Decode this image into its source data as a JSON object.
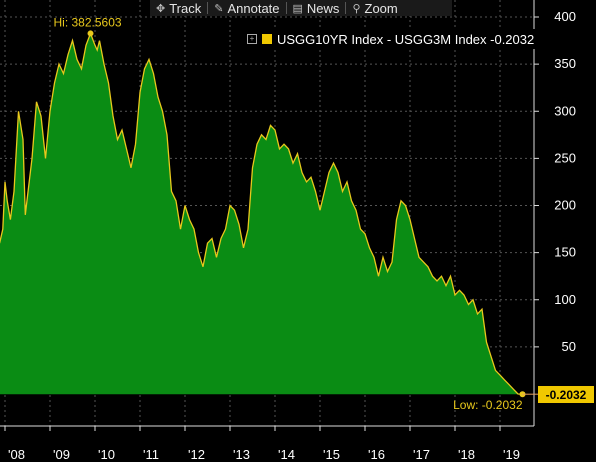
{
  "toolbar": {
    "track": {
      "label": "Track",
      "icon": "crosshair-icon"
    },
    "annotate": {
      "label": "Annotate",
      "icon": "pencil-icon"
    },
    "news": {
      "label": "News",
      "icon": "news-icon"
    },
    "zoom": {
      "label": "Zoom",
      "icon": "magnifier-icon"
    }
  },
  "legend": {
    "expand_icon": "plus-box-icon",
    "label": "USGG10YR Index - USGG3M Index -0.2032"
  },
  "colors": {
    "background": "#000000",
    "fill": "#0a8c14",
    "line": "#e8c81c",
    "grid": "#555555",
    "axis_text": "#ffffff",
    "annotation": "#e8c81c",
    "last_tag_bg": "#f0c800"
  },
  "annotations": {
    "high": "Hi: 382.5603",
    "low": "Low: -0.2032"
  },
  "last_value_tag": "-0.2032",
  "chart_data": {
    "type": "area",
    "x_ticks": [
      "'08",
      "'09",
      "'10",
      "'11",
      "'12",
      "'13",
      "'14",
      "'15",
      "'16",
      "'17",
      "'18",
      "'19"
    ],
    "y_ticks": [
      400,
      350,
      300,
      250,
      200,
      150,
      100,
      50
    ],
    "ylim": [
      -0.2032,
      410
    ],
    "xlim": [
      2007.88,
      2019.95
    ],
    "grid": true,
    "y_axis_side": "right",
    "legend_position": "top-right",
    "series": [
      {
        "name": "USGG10YR Index - USGG3M Index",
        "x": [
          2007.88,
          2007.95,
          2008.0,
          2008.05,
          2008.12,
          2008.2,
          2008.3,
          2008.4,
          2008.45,
          2008.5,
          2008.6,
          2008.7,
          2008.8,
          2008.9,
          2009.0,
          2009.1,
          2009.2,
          2009.3,
          2009.4,
          2009.5,
          2009.6,
          2009.7,
          2009.8,
          2009.9,
          2010.0,
          2010.05,
          2010.1,
          2010.2,
          2010.3,
          2010.4,
          2010.5,
          2010.6,
          2010.7,
          2010.8,
          2010.9,
          2011.0,
          2011.1,
          2011.2,
          2011.3,
          2011.4,
          2011.5,
          2011.6,
          2011.7,
          2011.8,
          2011.9,
          2012.0,
          2012.1,
          2012.2,
          2012.3,
          2012.4,
          2012.5,
          2012.6,
          2012.7,
          2012.8,
          2012.9,
          2013.0,
          2013.1,
          2013.2,
          2013.3,
          2013.4,
          2013.5,
          2013.6,
          2013.7,
          2013.8,
          2013.9,
          2014.0,
          2014.1,
          2014.2,
          2014.3,
          2014.4,
          2014.5,
          2014.6,
          2014.7,
          2014.8,
          2014.9,
          2015.0,
          2015.1,
          2015.2,
          2015.3,
          2015.4,
          2015.5,
          2015.6,
          2015.7,
          2015.8,
          2015.9,
          2016.0,
          2016.1,
          2016.2,
          2016.3,
          2016.4,
          2016.5,
          2016.6,
          2016.7,
          2016.8,
          2016.9,
          2017.0,
          2017.1,
          2017.2,
          2017.3,
          2017.4,
          2017.5,
          2017.6,
          2017.7,
          2017.8,
          2017.9,
          2018.0,
          2018.1,
          2018.2,
          2018.3,
          2018.4,
          2018.5,
          2018.6,
          2018.7,
          2018.8,
          2018.9,
          2019.0,
          2019.1,
          2019.2,
          2019.3,
          2019.4,
          2019.5
        ],
        "y": [
          160,
          175,
          225,
          205,
          185,
          215,
          300,
          270,
          190,
          210,
          250,
          310,
          295,
          250,
          300,
          330,
          350,
          340,
          360,
          375,
          355,
          345,
          370,
          382.5603,
          370,
          365,
          375,
          350,
          330,
          295,
          270,
          280,
          260,
          240,
          265,
          320,
          345,
          355,
          340,
          315,
          300,
          275,
          215,
          205,
          175,
          200,
          185,
          175,
          150,
          135,
          160,
          165,
          145,
          165,
          175,
          200,
          195,
          180,
          155,
          175,
          240,
          265,
          275,
          270,
          285,
          280,
          260,
          265,
          260,
          245,
          255,
          235,
          225,
          230,
          215,
          195,
          215,
          235,
          245,
          235,
          215,
          225,
          205,
          195,
          175,
          170,
          155,
          145,
          125,
          145,
          130,
          140,
          185,
          205,
          200,
          185,
          165,
          145,
          140,
          135,
          125,
          120,
          125,
          115,
          125,
          105,
          110,
          105,
          95,
          100,
          85,
          90,
          55,
          40,
          25,
          20,
          15,
          10,
          5,
          0,
          -0.2032
        ]
      }
    ]
  }
}
